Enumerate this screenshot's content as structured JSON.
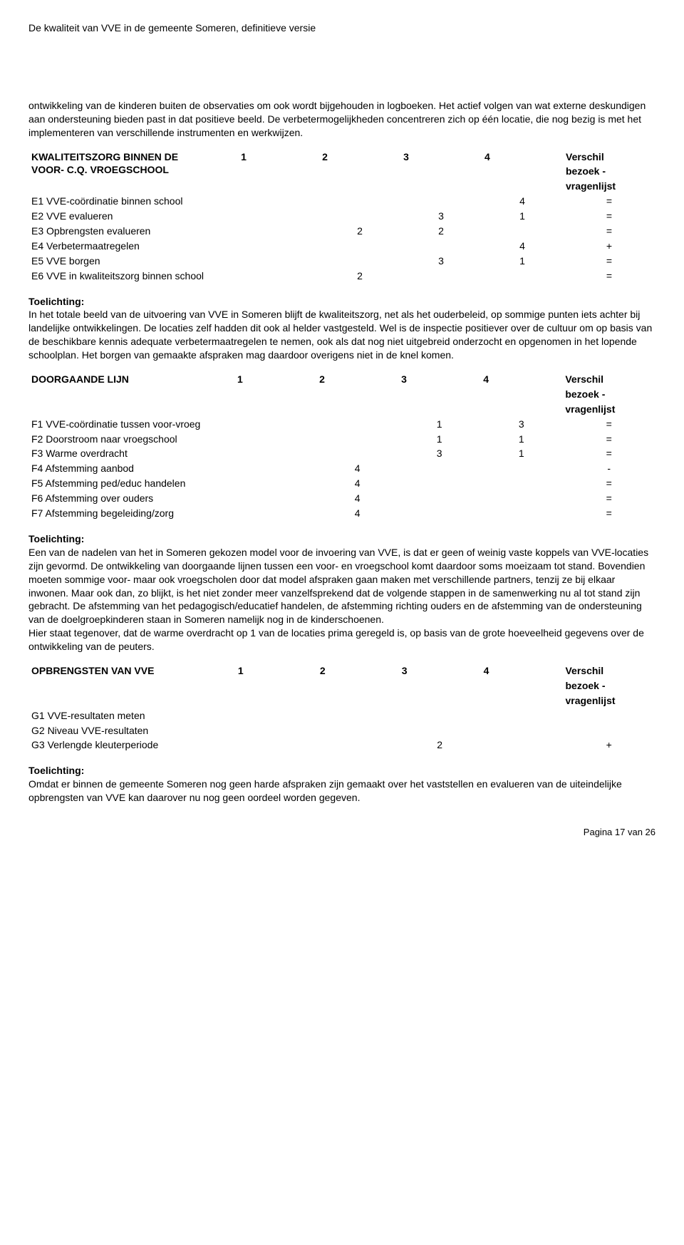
{
  "header": "De kwaliteit van VVE in de gemeente Someren, definitieve versie",
  "intro": "ontwikkeling van de kinderen buiten de observaties om ook wordt bijgehouden in logboeken. Het actief volgen van wat externe deskundigen aan ondersteuning bieden past in dat positieve beeld. De verbetermogelijkheden concentreren zich op één locatie, die nog bezig is met het implementeren van verschillende instrumenten en werkwijzen.",
  "col_headers": {
    "c1": "1",
    "c2": "2",
    "c3": "3",
    "c4": "4",
    "diff1": "Verschil",
    "diff2": "bezoek -",
    "diff3": "vragenlijst"
  },
  "table1": {
    "title1": "KWALITEITSZORG BINNEN DE",
    "title2": "VOOR- C.Q. VROEGSCHOOL",
    "rows": [
      {
        "label": "E1 VVE-coördinatie binnen school",
        "c1": "",
        "c2": "",
        "c3": "",
        "c4": "4",
        "diff": "="
      },
      {
        "label": "E2 VVE evalueren",
        "c1": "",
        "c2": "",
        "c3": "3",
        "c4": "1",
        "diff": "="
      },
      {
        "label": "E3 Opbrengsten evalueren",
        "c1": "",
        "c2": "2",
        "c3": "2",
        "c4": "",
        "diff": "="
      },
      {
        "label": "E4 Verbetermaatregelen",
        "c1": "",
        "c2": "",
        "c3": "",
        "c4": "4",
        "diff": "+"
      },
      {
        "label": "E5 VVE borgen",
        "c1": "",
        "c2": "",
        "c3": "3",
        "c4": "1",
        "diff": "="
      },
      {
        "label": "E6 VVE in kwaliteitszorg binnen school",
        "c1": "",
        "c2": "2",
        "c3": "",
        "c4": "",
        "diff": "="
      }
    ]
  },
  "toel1_label": "Toelichting:",
  "toel1": "In het totale beeld van de uitvoering van VVE in Someren blijft de kwaliteitszorg, net als het ouderbeleid, op sommige punten iets achter bij landelijke ontwikkelingen. De locaties zelf hadden dit ook al helder vastgesteld. Wel is de inspectie positiever over de cultuur om op basis van de beschikbare kennis adequate verbetermaatregelen te nemen, ook als dat nog niet uitgebreid onderzocht en opgenomen in het lopende schoolplan. Het borgen van gemaakte afspraken mag daardoor overigens niet in de knel komen.",
  "table2": {
    "title": "DOORGAANDE LIJN",
    "rows": [
      {
        "label": "F1 VVE-coördinatie tussen voor-vroeg",
        "c1": "",
        "c2": "",
        "c3": "1",
        "c4": "3",
        "diff": "="
      },
      {
        "label": "F2 Doorstroom naar vroegschool",
        "c1": "",
        "c2": "",
        "c3": "1",
        "c4": "1",
        "diff": "="
      },
      {
        "label": "F3 Warme overdracht",
        "c1": "",
        "c2": "",
        "c3": "3",
        "c4": "1",
        "diff": "="
      },
      {
        "label": "F4 Afstemming aanbod",
        "c1": "",
        "c2": "4",
        "c3": "",
        "c4": "",
        "diff": "-"
      },
      {
        "label": "F5 Afstemming ped/educ handelen",
        "c1": "",
        "c2": "4",
        "c3": "",
        "c4": "",
        "diff": "="
      },
      {
        "label": "F6 Afstemming over ouders",
        "c1": "",
        "c2": "4",
        "c3": "",
        "c4": "",
        "diff": "="
      },
      {
        "label": "F7 Afstemming begeleiding/zorg",
        "c1": "",
        "c2": "4",
        "c3": "",
        "c4": "",
        "diff": "="
      }
    ]
  },
  "toel2_label": "Toelichting:",
  "toel2a": "Een van de nadelen van het in Someren gekozen model voor de invoering van VVE, is dat er geen of weinig vaste koppels van VVE-locaties zijn gevormd. De ontwikkeling van doorgaande lijnen tussen een voor- en vroegschool komt daardoor soms moeizaam tot stand. Bovendien moeten sommige voor- maar ook vroegscholen door dat model afspraken gaan maken met verschillende partners, tenzij ze bij elkaar inwonen. Maar ook dan, zo blijkt, is het niet zonder meer vanzelfsprekend dat de volgende stappen in de samenwerking nu al tot stand zijn gebracht. De afstemming van het pedagogisch/educatief handelen, de afstemming richting ouders en de afstemming van de ondersteuning van de doelgroepkinderen staan in Someren namelijk nog in de kinderschoenen.",
  "toel2b": "Hier staat tegenover, dat de warme overdracht op 1 van de locaties prima geregeld is, op basis van de grote hoeveelheid gegevens over de ontwikkeling van de peuters.",
  "table3": {
    "title": "OPBRENGSTEN VAN VVE",
    "rows": [
      {
        "label": "G1 VVE-resultaten meten",
        "c1": "",
        "c2": "",
        "c3": "",
        "c4": "",
        "diff": ""
      },
      {
        "label": "G2 Niveau VVE-resultaten",
        "c1": "",
        "c2": "",
        "c3": "",
        "c4": "",
        "diff": ""
      },
      {
        "label": "G3 Verlengde kleuterperiode",
        "c1": "",
        "c2": "",
        "c3": "2",
        "c4": "",
        "diff": "+"
      }
    ]
  },
  "toel3_label": "Toelichting:",
  "toel3": "Omdat er binnen de gemeente Someren nog geen harde afspraken zijn gemaakt over het vaststellen en evalueren van de uiteindelijke opbrengsten van VVE kan daarover nu nog geen oordeel worden gegeven.",
  "footer": "Pagina 17 van 26"
}
